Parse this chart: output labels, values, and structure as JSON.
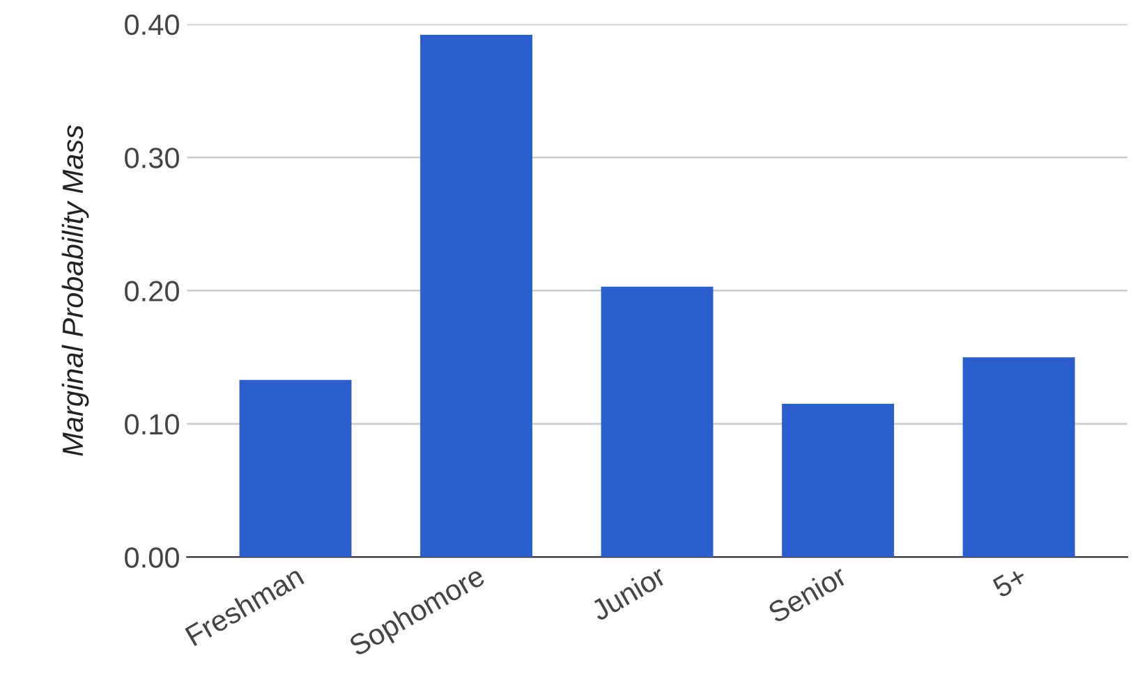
{
  "chart_data": {
    "type": "bar",
    "ylabel": "Marginal Probability Mass",
    "categories": [
      "Freshman",
      "Sophomore",
      "Junior",
      "Senior",
      "5+"
    ],
    "values": [
      0.133,
      0.392,
      0.203,
      0.115,
      0.15
    ],
    "color": "#2b5fce",
    "ylim": [
      0,
      0.4
    ],
    "yticks": [
      {
        "value": 0,
        "label": "0.00"
      },
      {
        "value": 0.1,
        "label": "0.10"
      },
      {
        "value": 0.2,
        "label": "0.20"
      },
      {
        "value": 0.3,
        "label": "0.30"
      },
      {
        "value": 0.4,
        "label": "0.40"
      }
    ],
    "grid": "y"
  }
}
